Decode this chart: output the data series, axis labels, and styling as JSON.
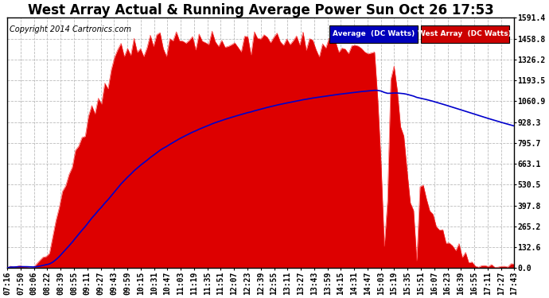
{
  "title": "West Array Actual & Running Average Power Sun Oct 26 17:53",
  "copyright": "Copyright 2014 Cartronics.com",
  "legend_labels": [
    "Average  (DC Watts)",
    "West Array  (DC Watts)"
  ],
  "legend_bg_colors": [
    "#0000bb",
    "#cc0000"
  ],
  "y_ticks": [
    0.0,
    132.6,
    265.2,
    397.8,
    530.5,
    663.1,
    795.7,
    928.3,
    1060.9,
    1193.5,
    1326.2,
    1458.8,
    1591.4
  ],
  "y_max": 1591.4,
  "x_labels": [
    "07:16",
    "07:50",
    "08:06",
    "08:22",
    "08:39",
    "08:55",
    "09:11",
    "09:27",
    "09:43",
    "09:59",
    "10:15",
    "10:31",
    "10:47",
    "11:03",
    "11:19",
    "11:35",
    "11:51",
    "12:07",
    "12:23",
    "12:39",
    "12:55",
    "13:11",
    "13:27",
    "13:43",
    "13:59",
    "14:15",
    "14:31",
    "14:47",
    "15:03",
    "15:19",
    "15:35",
    "15:51",
    "16:07",
    "16:23",
    "16:39",
    "16:55",
    "17:11",
    "17:27",
    "17:43"
  ],
  "area_color": "#dd0000",
  "line_color": "#0000cc",
  "background_color": "#ffffff",
  "grid_color": "#bbbbbb",
  "title_fontsize": 12,
  "copyright_fontsize": 7,
  "tick_fontsize": 7,
  "line_width": 1.2
}
